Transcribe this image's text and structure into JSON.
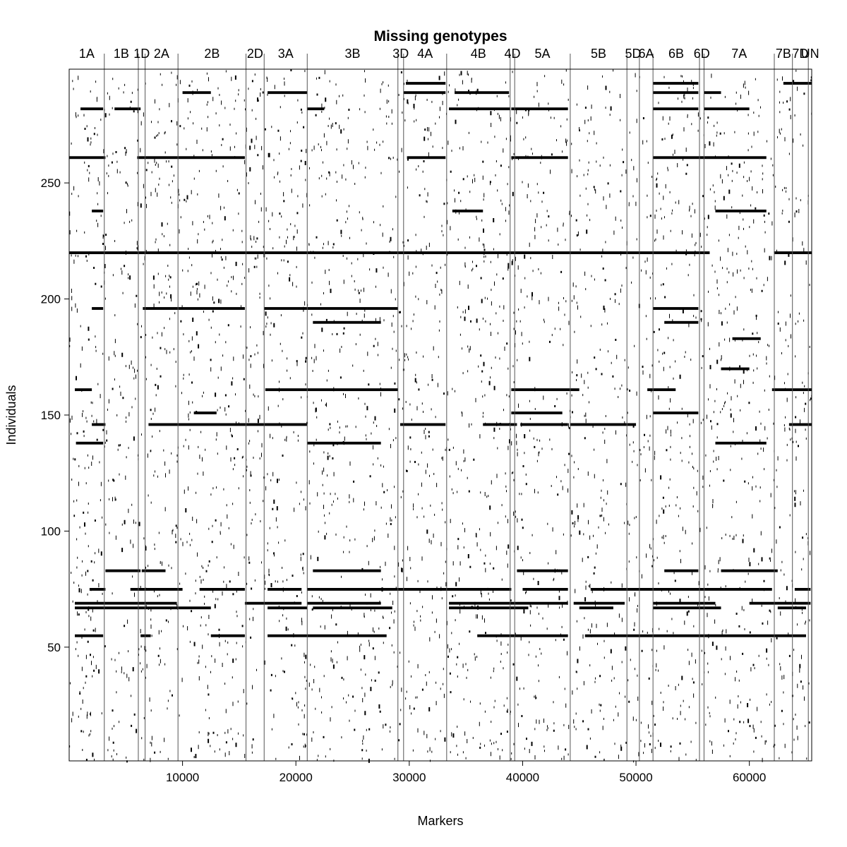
{
  "chart_data": {
    "type": "heatmap",
    "title": "Missing genotypes",
    "xlabel": "Markers",
    "ylabel": "Individuals",
    "xlim": [
      1,
      65500
    ],
    "ylim": [
      1,
      299
    ],
    "x_ticks": [
      10000,
      20000,
      30000,
      40000,
      50000,
      60000
    ],
    "x_tick_labels": [
      "10000",
      "20000",
      "30000",
      "40000",
      "50000",
      "60000"
    ],
    "y_ticks": [
      50,
      100,
      150,
      200,
      250
    ],
    "y_tick_labels": [
      "50",
      "100",
      "150",
      "200",
      "250"
    ],
    "grid": false,
    "colors": {
      "missing": "#000000",
      "background": "#ffffff",
      "boundary": "#555555"
    },
    "chromosomes": [
      {
        "name": "1A",
        "end": 3100
      },
      {
        "name": "1B",
        "end": 6100
      },
      {
        "name": "1D",
        "end": 6700
      },
      {
        "name": "2A",
        "end": 9600
      },
      {
        "name": "2B",
        "end": 15600
      },
      {
        "name": "2D",
        "end": 17200
      },
      {
        "name": "3A",
        "end": 21000
      },
      {
        "name": "3B",
        "end": 29000
      },
      {
        "name": "3D",
        "end": 29500
      },
      {
        "name": "4A",
        "end": 33300
      },
      {
        "name": "4B",
        "end": 38900
      },
      {
        "name": "4D",
        "end": 39300
      },
      {
        "name": "5A",
        "end": 44200
      },
      {
        "name": "5B",
        "end": 49200
      },
      {
        "name": "5D",
        "end": 50300
      },
      {
        "name": "6A",
        "end": 51500
      },
      {
        "name": "6B",
        "end": 55600
      },
      {
        "name": "6D",
        "end": 56000
      },
      {
        "name": "7A",
        "end": 62200
      },
      {
        "name": "7B",
        "end": 63800
      },
      {
        "name": "7D",
        "end": 65200
      },
      {
        "name": "UN",
        "end": 65500
      }
    ],
    "missing_runs": [
      {
        "individual": 55,
        "x": [
          [
            500,
            3000
          ],
          [
            6300,
            7200
          ],
          [
            12500,
            15500
          ],
          [
            17500,
            28000
          ],
          [
            36000,
            44000
          ],
          [
            45500,
            65000
          ]
        ]
      },
      {
        "individual": 67,
        "x": [
          [
            500,
            12500
          ],
          [
            17500,
            21000
          ],
          [
            21500,
            28500
          ],
          [
            33500,
            40500
          ],
          [
            45000,
            48000
          ],
          [
            51500,
            57500
          ],
          [
            62500,
            65000
          ]
        ]
      },
      {
        "individual": 69,
        "x": [
          [
            500,
            9500
          ],
          [
            15500,
            20500
          ],
          [
            21000,
            27500
          ],
          [
            33500,
            44000
          ],
          [
            44500,
            49000
          ],
          [
            51500,
            57000
          ],
          [
            60000,
            65400
          ]
        ]
      },
      {
        "individual": 75,
        "x": [
          [
            1800,
            3200
          ],
          [
            5400,
            10000
          ],
          [
            11500,
            15500
          ],
          [
            17500,
            20500
          ],
          [
            21000,
            39000
          ],
          [
            40000,
            44000
          ],
          [
            46000,
            62000
          ],
          [
            64000,
            65400
          ]
        ]
      },
      {
        "individual": 83,
        "x": [
          [
            3200,
            6300
          ],
          [
            6400,
            8500
          ],
          [
            21500,
            27500
          ],
          [
            39500,
            44000
          ],
          [
            52500,
            55500
          ],
          [
            57500,
            62500
          ]
        ]
      },
      {
        "individual": 138,
        "x": [
          [
            600,
            3000
          ],
          [
            21000,
            27500
          ],
          [
            57000,
            61500
          ]
        ]
      },
      {
        "individual": 146,
        "x": [
          [
            2000,
            3200
          ],
          [
            7000,
            21000
          ],
          [
            29200,
            33200
          ],
          [
            36500,
            39500
          ],
          [
            39800,
            44000
          ],
          [
            44200,
            50000
          ],
          [
            63500,
            65500
          ]
        ]
      },
      {
        "individual": 151,
        "x": [
          [
            11000,
            13000
          ],
          [
            39000,
            43500
          ],
          [
            51500,
            55500
          ]
        ]
      },
      {
        "individual": 161,
        "x": [
          [
            500,
            2000
          ],
          [
            17300,
            29000
          ],
          [
            39000,
            45000
          ],
          [
            51000,
            53500
          ],
          [
            62000,
            65500
          ]
        ]
      },
      {
        "individual": 170,
        "x": [
          [
            57500,
            60000
          ]
        ]
      },
      {
        "individual": 183,
        "x": [
          [
            58500,
            61000
          ]
        ]
      },
      {
        "individual": 190,
        "x": [
          [
            21500,
            27500
          ],
          [
            52500,
            55500
          ]
        ]
      },
      {
        "individual": 196,
        "x": [
          [
            2000,
            3000
          ],
          [
            6500,
            15500
          ],
          [
            17200,
            29000
          ],
          [
            51500,
            55500
          ]
        ]
      },
      {
        "individual": 220,
        "x": [
          [
            0,
            33500
          ],
          [
            33500,
            56500
          ],
          [
            62200,
            65500
          ]
        ]
      },
      {
        "individual": 238,
        "x": [
          [
            2000,
            3000
          ],
          [
            33800,
            36500
          ],
          [
            57000,
            61500
          ]
        ]
      },
      {
        "individual": 261,
        "x": [
          [
            0,
            3200
          ],
          [
            6000,
            15500
          ],
          [
            29800,
            33200
          ],
          [
            39000,
            44000
          ],
          [
            51500,
            61500
          ]
        ]
      },
      {
        "individual": 282,
        "x": [
          [
            1000,
            3000
          ],
          [
            4000,
            6300
          ],
          [
            21000,
            22500
          ],
          [
            33500,
            38900
          ],
          [
            39000,
            44000
          ],
          [
            51500,
            55500
          ],
          [
            56000,
            60000
          ]
        ]
      },
      {
        "individual": 289,
        "x": [
          [
            10000,
            12500
          ],
          [
            17500,
            21000
          ],
          [
            29500,
            33200
          ],
          [
            34000,
            38800
          ],
          [
            51500,
            55500
          ],
          [
            56000,
            57500
          ]
        ]
      },
      {
        "individual": 293,
        "x": [
          [
            29700,
            33200
          ],
          [
            51500,
            55500
          ],
          [
            63000,
            65500
          ]
        ]
      }
    ]
  }
}
